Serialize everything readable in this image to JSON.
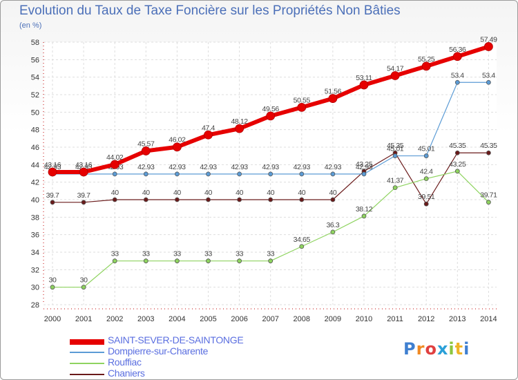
{
  "title": "Evolution du Taux de Taxe Foncière sur les Propriétés Non Bâties",
  "subtitle": "(en %)",
  "logo_text": "Proxiti",
  "chart_data": {
    "type": "line",
    "title": "Evolution du Taux de Taxe Foncière sur les Propriétés Non Bâties",
    "ylabel": "(en %)",
    "xlabel": "",
    "ylim": [
      28,
      58
    ],
    "yticks": [
      28,
      30,
      32,
      34,
      36,
      38,
      40,
      42,
      44,
      46,
      48,
      50,
      52,
      54,
      56,
      58
    ],
    "categories": [
      "2000",
      "2001",
      "2002",
      "2003",
      "2004",
      "2005",
      "2006",
      "2007",
      "2008",
      "2009",
      "2010",
      "2011",
      "2012",
      "2013",
      "2014"
    ],
    "grid": true,
    "legend_position": "bottom-left",
    "series": [
      {
        "name": "Chaniers",
        "color": "#6a1a1a",
        "width": 1.2,
        "values": [
          39.7,
          39.7,
          40,
          40,
          40,
          40,
          40,
          40,
          40,
          40,
          43.25,
          45.35,
          39.51,
          45.35,
          45.35
        ],
        "labels": [
          "39.7",
          "39.7",
          "40",
          "40",
          "40",
          "40",
          "40",
          "40",
          "40",
          "40",
          "43.25",
          "45.35",
          "39.51",
          "45.35",
          "45.35"
        ]
      },
      {
        "name": "Rouffiac",
        "color": "#8ed35f",
        "width": 1.2,
        "values": [
          30,
          30,
          33,
          33,
          33,
          33,
          33,
          33,
          34.65,
          36.3,
          38.12,
          41.37,
          42.4,
          43.25,
          39.71
        ],
        "labels": [
          "30",
          "30",
          "33",
          "33",
          "33",
          "33",
          "33",
          "33",
          "34.65",
          "36.3",
          "38.12",
          "41.37",
          "42.4",
          "43.25",
          "39.71"
        ]
      },
      {
        "name": "Dompierre-sur-Charente",
        "color": "#5b9bd5",
        "width": 1.2,
        "values": [
          42.93,
          42.93,
          42.93,
          42.93,
          42.93,
          42.93,
          42.93,
          42.93,
          42.93,
          42.93,
          42.93,
          45.01,
          45.01,
          53.4,
          53.4
        ],
        "labels": [
          "42.93",
          "42.93",
          "42.93",
          "42.93",
          "42.93",
          "42.93",
          "42.93",
          "42.93",
          "42.93",
          "42.93",
          "42.93",
          "45.01",
          "45.01",
          "53.4",
          "53.4"
        ]
      },
      {
        "name": "SAINT-SEVER-DE-SAINTONGE",
        "color": "#e60000",
        "width": 6,
        "values": [
          43.16,
          43.16,
          44.02,
          45.57,
          46.02,
          47.4,
          48.12,
          49.56,
          50.55,
          51.56,
          53.11,
          54.17,
          55.25,
          56.36,
          57.49
        ],
        "labels": [
          "43.16",
          "43.16",
          "44.02",
          "45.57",
          "46.02",
          "47.4",
          "48.12",
          "49.56",
          "50.55",
          "51.56",
          "53.11",
          "54.17",
          "55.25",
          "56.36",
          "57.49"
        ]
      }
    ],
    "legend": [
      "SAINT-SEVER-DE-SAINTONGE",
      "Dompierre-sur-Charente",
      "Rouffiac",
      "Chaniers"
    ]
  }
}
